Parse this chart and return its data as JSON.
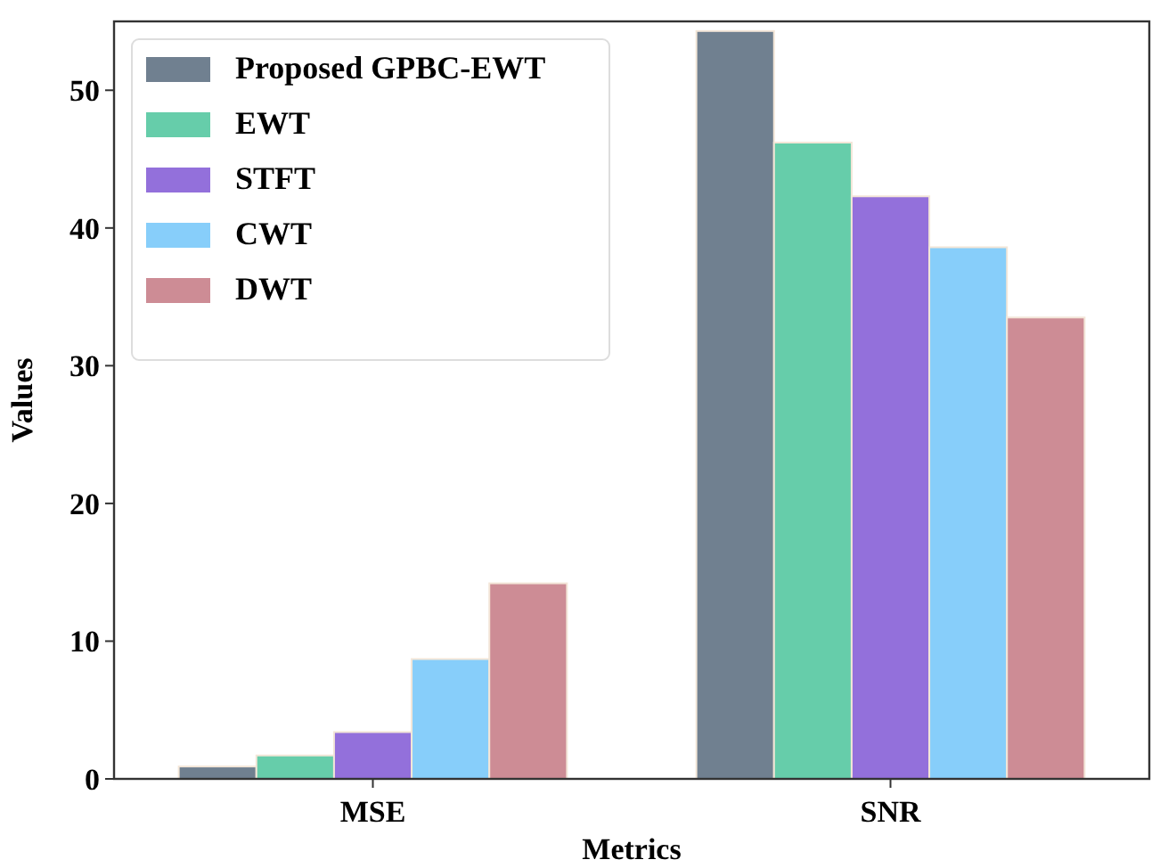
{
  "chart_data": {
    "type": "bar",
    "xlabel": "Metrics",
    "ylabel": "Values",
    "categories": [
      "MSE",
      "SNR"
    ],
    "series": [
      {
        "name": "Proposed GPBC-EWT",
        "color": "#708090",
        "values": [
          0.9,
          54.3
        ]
      },
      {
        "name": "EWT",
        "color": "#66cdaa",
        "values": [
          1.7,
          46.2
        ]
      },
      {
        "name": "STFT",
        "color": "#9370db",
        "values": [
          3.4,
          42.3
        ]
      },
      {
        "name": "CWT",
        "color": "#87cefa",
        "values": [
          8.7,
          38.6
        ]
      },
      {
        "name": "DWT",
        "color": "#cd8c95",
        "values": [
          14.2,
          33.5
        ]
      }
    ],
    "ylim": [
      0,
      55
    ],
    "yticks": [
      0,
      10,
      20,
      30,
      40,
      50
    ],
    "grid": false,
    "legend": "top left"
  }
}
